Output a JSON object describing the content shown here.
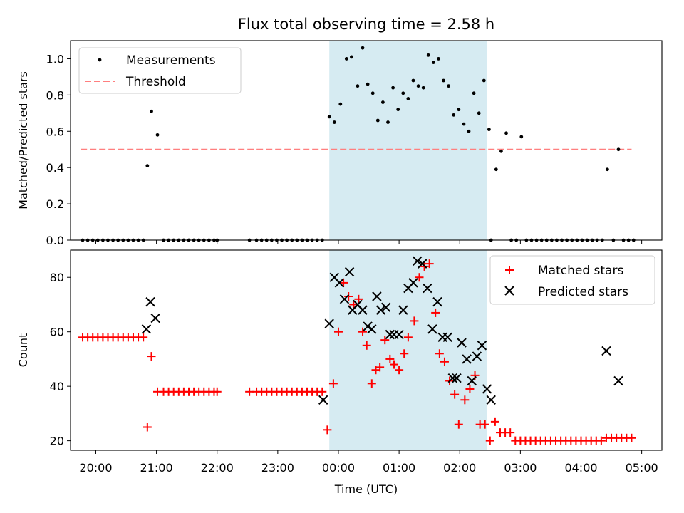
{
  "title": "Flux total observing time = 2.58 h",
  "colors": {
    "measurement": "#000000",
    "threshold": "#ff7f7f",
    "matched": "#ff0000",
    "predicted": "#000000",
    "highlight": "#add8e6"
  },
  "chart_data": [
    {
      "type": "scatter",
      "ylabel": "Matched/Predicted stars",
      "xlim": [
        "19:35",
        "05:20"
      ],
      "ylim": [
        0,
        1.1
      ],
      "yticks": [
        0.0,
        0.2,
        0.4,
        0.6,
        0.8,
        1.0
      ],
      "highlight_span": [
        "23:51",
        "02:27"
      ],
      "threshold": {
        "value": 0.5,
        "x": [
          "19:45",
          "04:50"
        ]
      },
      "legend": {
        "position": "top-left",
        "entries": [
          {
            "label": "Measurements"
          },
          {
            "label": "Threshold"
          }
        ]
      },
      "series": [
        {
          "name": "Measurements",
          "points": [
            [
              "19:47",
              0
            ],
            [
              "19:52",
              0
            ],
            [
              "19:57",
              0
            ],
            [
              "20:02",
              0
            ],
            [
              "20:07",
              0
            ],
            [
              "20:12",
              0
            ],
            [
              "20:17",
              0
            ],
            [
              "20:22",
              0
            ],
            [
              "20:27",
              0
            ],
            [
              "20:32",
              0
            ],
            [
              "20:37",
              0
            ],
            [
              "20:42",
              0
            ],
            [
              "20:47",
              0
            ],
            [
              "20:51",
              0.41
            ],
            [
              "20:55",
              0.71
            ],
            [
              "21:01",
              0.58
            ],
            [
              "21:07",
              0
            ],
            [
              "21:12",
              0
            ],
            [
              "21:17",
              0
            ],
            [
              "21:22",
              0
            ],
            [
              "21:27",
              0
            ],
            [
              "21:32",
              0
            ],
            [
              "21:37",
              0
            ],
            [
              "21:42",
              0
            ],
            [
              "21:47",
              0
            ],
            [
              "21:52",
              0
            ],
            [
              "21:57",
              0
            ],
            [
              "22:00",
              0
            ],
            [
              "22:32",
              0
            ],
            [
              "22:39",
              0
            ],
            [
              "22:44",
              0
            ],
            [
              "22:49",
              0
            ],
            [
              "22:54",
              0
            ],
            [
              "22:59",
              0
            ],
            [
              "23:04",
              0
            ],
            [
              "23:09",
              0
            ],
            [
              "23:14",
              0
            ],
            [
              "23:19",
              0
            ],
            [
              "23:24",
              0
            ],
            [
              "23:29",
              0
            ],
            [
              "23:34",
              0
            ],
            [
              "23:39",
              0
            ],
            [
              "23:44",
              0
            ],
            [
              "23:51",
              0.68
            ],
            [
              "23:56",
              0.65
            ],
            [
              "00:02",
              0.75
            ],
            [
              "00:08",
              1.0
            ],
            [
              "00:13",
              1.01
            ],
            [
              "00:19",
              0.85
            ],
            [
              "00:24",
              1.06
            ],
            [
              "00:29",
              0.86
            ],
            [
              "00:34",
              0.81
            ],
            [
              "00:39",
              0.66
            ],
            [
              "00:44",
              0.76
            ],
            [
              "00:49",
              0.65
            ],
            [
              "00:54",
              0.84
            ],
            [
              "00:59",
              0.72
            ],
            [
              "01:04",
              0.81
            ],
            [
              "01:09",
              0.78
            ],
            [
              "01:14",
              0.88
            ],
            [
              "01:19",
              0.85
            ],
            [
              "01:24",
              0.84
            ],
            [
              "01:29",
              1.02
            ],
            [
              "01:34",
              0.98
            ],
            [
              "01:39",
              1.0
            ],
            [
              "01:44",
              0.88
            ],
            [
              "01:49",
              0.85
            ],
            [
              "01:54",
              0.69
            ],
            [
              "01:59",
              0.72
            ],
            [
              "02:04",
              0.64
            ],
            [
              "02:09",
              0.6
            ],
            [
              "02:14",
              0.81
            ],
            [
              "02:19",
              0.7
            ],
            [
              "02:24",
              0.88
            ],
            [
              "02:29",
              0.61
            ],
            [
              "02:31",
              0
            ],
            [
              "02:36",
              0.39
            ],
            [
              "02:41",
              0.49
            ],
            [
              "02:46",
              0.59
            ],
            [
              "02:51",
              0
            ],
            [
              "02:56",
              0
            ],
            [
              "03:01",
              0.57
            ],
            [
              "03:06",
              0
            ],
            [
              "03:11",
              0
            ],
            [
              "03:16",
              0
            ],
            [
              "03:21",
              0
            ],
            [
              "03:26",
              0
            ],
            [
              "03:31",
              0
            ],
            [
              "03:36",
              0
            ],
            [
              "03:41",
              0
            ],
            [
              "03:46",
              0
            ],
            [
              "03:51",
              0
            ],
            [
              "03:56",
              0
            ],
            [
              "04:01",
              0
            ],
            [
              "04:06",
              0
            ],
            [
              "04:11",
              0
            ],
            [
              "04:16",
              0
            ],
            [
              "04:21",
              0
            ],
            [
              "04:26",
              0.39
            ],
            [
              "04:32",
              0
            ],
            [
              "04:37",
              0.5
            ],
            [
              "04:42",
              0
            ],
            [
              "04:47",
              0
            ],
            [
              "04:52",
              0
            ]
          ]
        }
      ]
    },
    {
      "type": "scatter",
      "xlabel": "Time (UTC)",
      "ylabel": "Count",
      "xlim": [
        "19:35",
        "05:20"
      ],
      "ylim": [
        16.5,
        90
      ],
      "yticks": [
        20,
        40,
        60,
        80
      ],
      "xticks": [
        "20:00",
        "21:00",
        "22:00",
        "23:00",
        "00:00",
        "01:00",
        "02:00",
        "03:00",
        "04:00",
        "05:00"
      ],
      "highlight_span": [
        "23:51",
        "02:27"
      ],
      "legend": {
        "position": "top-right",
        "entries": [
          {
            "label": "Matched stars"
          },
          {
            "label": "Predicted stars"
          }
        ]
      },
      "series": [
        {
          "name": "Matched stars",
          "marker": "plus",
          "points": [
            [
              "19:47",
              58
            ],
            [
              "19:52",
              58
            ],
            [
              "19:57",
              58
            ],
            [
              "20:02",
              58
            ],
            [
              "20:07",
              58
            ],
            [
              "20:12",
              58
            ],
            [
              "20:17",
              58
            ],
            [
              "20:22",
              58
            ],
            [
              "20:27",
              58
            ],
            [
              "20:32",
              58
            ],
            [
              "20:37",
              58
            ],
            [
              "20:42",
              58
            ],
            [
              "20:47",
              58
            ],
            [
              "20:51",
              25
            ],
            [
              "20:55",
              51
            ],
            [
              "21:01",
              38
            ],
            [
              "21:07",
              38
            ],
            [
              "21:12",
              38
            ],
            [
              "21:17",
              38
            ],
            [
              "21:22",
              38
            ],
            [
              "21:27",
              38
            ],
            [
              "21:32",
              38
            ],
            [
              "21:37",
              38
            ],
            [
              "21:42",
              38
            ],
            [
              "21:47",
              38
            ],
            [
              "21:52",
              38
            ],
            [
              "21:57",
              38
            ],
            [
              "22:00",
              38
            ],
            [
              "22:32",
              38
            ],
            [
              "22:39",
              38
            ],
            [
              "22:44",
              38
            ],
            [
              "22:49",
              38
            ],
            [
              "22:54",
              38
            ],
            [
              "22:59",
              38
            ],
            [
              "23:04",
              38
            ],
            [
              "23:09",
              38
            ],
            [
              "23:14",
              38
            ],
            [
              "23:19",
              38
            ],
            [
              "23:24",
              38
            ],
            [
              "23:29",
              38
            ],
            [
              "23:34",
              38
            ],
            [
              "23:39",
              38
            ],
            [
              "23:44",
              38
            ],
            [
              "23:49",
              24
            ],
            [
              "23:55",
              41
            ],
            [
              "00:00",
              60
            ],
            [
              "00:05",
              78
            ],
            [
              "00:10",
              73
            ],
            [
              "00:15",
              70
            ],
            [
              "00:20",
              72
            ],
            [
              "00:24",
              60
            ],
            [
              "00:28",
              55
            ],
            [
              "00:33",
              41
            ],
            [
              "00:37",
              46
            ],
            [
              "00:41",
              47
            ],
            [
              "00:46",
              57
            ],
            [
              "00:51",
              50
            ],
            [
              "00:55",
              48
            ],
            [
              "01:00",
              46
            ],
            [
              "01:05",
              52
            ],
            [
              "01:09",
              58
            ],
            [
              "01:15",
              64
            ],
            [
              "01:20",
              80
            ],
            [
              "01:25",
              84
            ],
            [
              "01:30",
              85
            ],
            [
              "01:36",
              67
            ],
            [
              "01:40",
              52
            ],
            [
              "01:45",
              49
            ],
            [
              "01:50",
              42
            ],
            [
              "01:55",
              37
            ],
            [
              "01:59",
              26
            ],
            [
              "02:05",
              35
            ],
            [
              "02:10",
              39
            ],
            [
              "02:15",
              44
            ],
            [
              "02:20",
              26
            ],
            [
              "02:25",
              26
            ],
            [
              "02:30",
              20
            ],
            [
              "02:35",
              27
            ],
            [
              "02:40",
              23
            ],
            [
              "02:45",
              23
            ],
            [
              "02:50",
              23
            ],
            [
              "02:55",
              20
            ],
            [
              "03:00",
              20
            ],
            [
              "03:05",
              20
            ],
            [
              "03:10",
              20
            ],
            [
              "03:15",
              20
            ],
            [
              "03:20",
              20
            ],
            [
              "03:25",
              20
            ],
            [
              "03:30",
              20
            ],
            [
              "03:35",
              20
            ],
            [
              "03:40",
              20
            ],
            [
              "03:45",
              20
            ],
            [
              "03:50",
              20
            ],
            [
              "03:55",
              20
            ],
            [
              "04:00",
              20
            ],
            [
              "04:05",
              20
            ],
            [
              "04:10",
              20
            ],
            [
              "04:15",
              20
            ],
            [
              "04:20",
              20
            ],
            [
              "04:25",
              21
            ],
            [
              "04:30",
              21
            ],
            [
              "04:35",
              21
            ],
            [
              "04:40",
              21
            ],
            [
              "04:45",
              21
            ],
            [
              "04:50",
              21
            ]
          ]
        },
        {
          "name": "Predicted stars",
          "marker": "x",
          "points": [
            [
              "20:50",
              61
            ],
            [
              "20:54",
              71
            ],
            [
              "20:59",
              65
            ],
            [
              "23:45",
              35
            ],
            [
              "23:51",
              63
            ],
            [
              "23:56",
              80
            ],
            [
              "00:01",
              78
            ],
            [
              "00:06",
              72
            ],
            [
              "00:11",
              82
            ],
            [
              "00:14",
              68
            ],
            [
              "00:19",
              70
            ],
            [
              "00:24",
              68
            ],
            [
              "00:29",
              62
            ],
            [
              "00:33",
              61
            ],
            [
              "00:38",
              73
            ],
            [
              "00:42",
              68
            ],
            [
              "00:47",
              69
            ],
            [
              "00:51",
              59
            ],
            [
              "00:55",
              59
            ],
            [
              "01:00",
              59
            ],
            [
              "01:04",
              68
            ],
            [
              "01:09",
              76
            ],
            [
              "01:14",
              78
            ],
            [
              "01:18",
              86
            ],
            [
              "01:23",
              85
            ],
            [
              "01:28",
              76
            ],
            [
              "01:33",
              61
            ],
            [
              "01:38",
              71
            ],
            [
              "01:43",
              58
            ],
            [
              "01:48",
              58
            ],
            [
              "01:53",
              43
            ],
            [
              "01:57",
              43
            ],
            [
              "02:02",
              56
            ],
            [
              "02:07",
              50
            ],
            [
              "02:12",
              42
            ],
            [
              "02:17",
              51
            ],
            [
              "02:22",
              55
            ],
            [
              "02:27",
              39
            ],
            [
              "02:31",
              35
            ],
            [
              "04:25",
              53
            ],
            [
              "04:37",
              42
            ]
          ]
        }
      ]
    }
  ]
}
